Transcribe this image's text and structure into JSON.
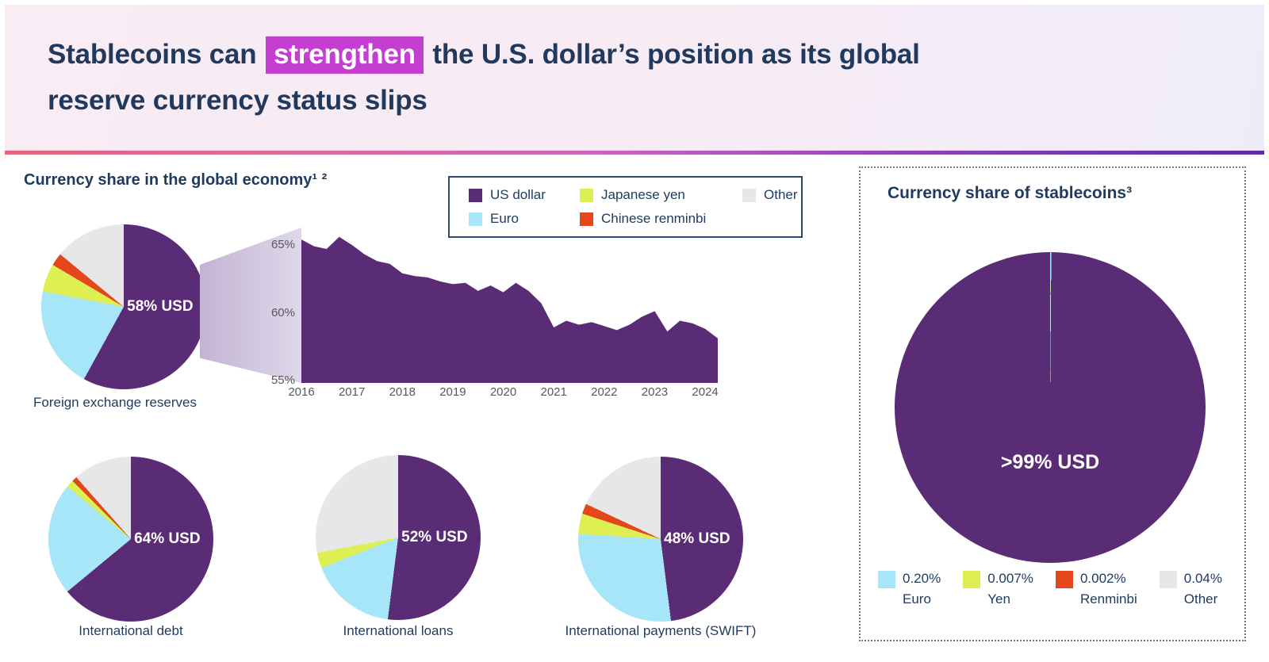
{
  "header": {
    "title_part1": "Stablecoins can ",
    "title_highlight": "strengthen",
    "title_part2": " the U.S. dollar’s position as its global",
    "title_line2": "reserve currency status slips"
  },
  "left_panel": {
    "heading": "Currency share in the global economy¹ ²",
    "legend_items": [
      {
        "label": "US dollar",
        "color_key": "us_dollar"
      },
      {
        "label": "Japanese yen",
        "color_key": "yen"
      },
      {
        "label": "Other",
        "color_key": "other"
      },
      {
        "label": "Euro",
        "color_key": "euro"
      },
      {
        "label": "Chinese renminbi",
        "color_key": "renminbi"
      }
    ]
  },
  "right_panel": {
    "heading": "Currency share of stablecoins³",
    "legend_items": [
      {
        "percent": "0.20%",
        "label": "Euro",
        "color_key": "euro"
      },
      {
        "percent": "0.007%",
        "label": "Yen",
        "color_key": "yen"
      },
      {
        "percent": "0.002%",
        "label": "Renminbi",
        "color_key": "renminbi"
      },
      {
        "percent": "0.04%",
        "label": "Other",
        "color_key": "other"
      }
    ]
  },
  "palette": {
    "us_dollar": "#5b2c76",
    "euro": "#a6e6f8",
    "yen": "#ddef53",
    "renminbi": "#e5471d",
    "other": "#e8e7e8",
    "navy": "#1e3a5e",
    "highlight": "#c43ed2",
    "axis_gray": "#58585a"
  },
  "chart_data": [
    {
      "id": "fx_reserves",
      "type": "pie",
      "title": "Foreign exchange reserves",
      "center_label": "58% USD",
      "categories": [
        "US dollar",
        "Euro",
        "Japanese yen",
        "Chinese renminbi",
        "Other"
      ],
      "color_keys": [
        "us_dollar",
        "euro",
        "yen",
        "renminbi",
        "other"
      ],
      "values": [
        58,
        20,
        5.5,
        2.5,
        14
      ]
    },
    {
      "id": "usd_share_trend",
      "type": "area",
      "title": "US dollar share of foreign exchange reserves, 2016–2024",
      "x_start": 2016,
      "x_step": 0.25,
      "values": [
        65.6,
        65.1,
        64.9,
        65.8,
        65.2,
        64.5,
        64.0,
        63.8,
        63.1,
        62.9,
        62.8,
        62.5,
        62.3,
        62.4,
        61.8,
        62.2,
        61.7,
        62.4,
        61.8,
        60.9,
        59.1,
        59.6,
        59.3,
        59.5,
        59.2,
        58.9,
        59.3,
        59.9,
        60.3,
        58.8,
        59.6,
        59.4,
        59.0,
        58.3
      ],
      "y_ticks": [
        "65%",
        "60%",
        "55%"
      ],
      "y_tick_values": [
        65,
        60,
        55
      ],
      "x_ticks": [
        "2016",
        "2017",
        "2018",
        "2019",
        "2020",
        "2021",
        "2022",
        "2023",
        "2024"
      ],
      "ylim": [
        55,
        66.6
      ],
      "grid": false,
      "legend_position": "top-right"
    },
    {
      "id": "intl_debt",
      "type": "pie",
      "title": "International debt",
      "center_label": "64% USD",
      "categories": [
        "US dollar",
        "Euro",
        "Japanese yen",
        "Chinese renminbi",
        "Other"
      ],
      "color_keys": [
        "us_dollar",
        "euro",
        "yen",
        "renminbi",
        "other"
      ],
      "values": [
        64,
        22,
        1.5,
        1,
        11.5
      ]
    },
    {
      "id": "intl_loans",
      "type": "pie",
      "title": "International loans",
      "center_label": "52% USD",
      "categories": [
        "US dollar",
        "Euro",
        "Japanese yen",
        "Chinese renminbi",
        "Other"
      ],
      "color_keys": [
        "us_dollar",
        "euro",
        "yen",
        "renminbi",
        "other"
      ],
      "values": [
        52,
        17,
        3,
        0,
        28
      ]
    },
    {
      "id": "intl_payments",
      "type": "pie",
      "title": "International payments (SWIFT)",
      "center_label": "48% USD",
      "categories": [
        "US dollar",
        "Euro",
        "Japanese yen",
        "Chinese renminbi",
        "Other"
      ],
      "color_keys": [
        "us_dollar",
        "euro",
        "yen",
        "renminbi",
        "other"
      ],
      "values": [
        48,
        28,
        4,
        2,
        18
      ]
    },
    {
      "id": "stablecoins",
      "type": "pie",
      "title": "Currency share of stablecoins",
      "center_label": ">99% USD",
      "categories": [
        "US dollar",
        "Euro",
        "Yen",
        "Renminbi",
        "Other"
      ],
      "color_keys": [
        "us_dollar",
        "euro",
        "yen",
        "renminbi",
        "other"
      ],
      "values": [
        99.751,
        0.2,
        0.007,
        0.002,
        0.04
      ],
      "slice_order": [
        1,
        2,
        3,
        4,
        0
      ],
      "start_deg": -0.45
    }
  ]
}
